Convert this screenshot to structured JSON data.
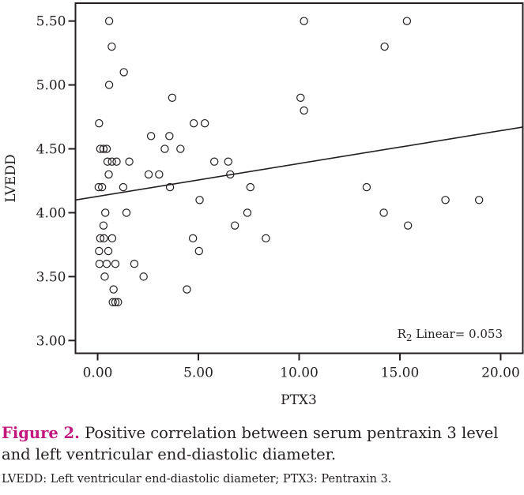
{
  "chart_data": {
    "type": "scatter",
    "title": "",
    "xlabel": "PTX3",
    "ylabel": "LVEDD",
    "xlim": [
      -1.1,
      21.1
    ],
    "ylim": [
      2.9,
      5.64
    ],
    "xticks": [
      0,
      5,
      10,
      15,
      20
    ],
    "xtick_labels": [
      "0.00",
      "5.00",
      "10.00",
      "15.00",
      "20.00"
    ],
    "yticks": [
      3.0,
      3.5,
      4.0,
      4.5,
      5.0,
      5.5
    ],
    "ytick_labels": [
      "3.00",
      "3.50",
      "4.00",
      "4.50",
      "5.00",
      "5.50"
    ],
    "grid": false,
    "legend": null,
    "points": [
      {
        "x": 0.57,
        "y": 5.5
      },
      {
        "x": 0.7,
        "y": 5.3
      },
      {
        "x": 1.3,
        "y": 5.1
      },
      {
        "x": 0.57,
        "y": 5.0
      },
      {
        "x": 0.07,
        "y": 4.7
      },
      {
        "x": 0.13,
        "y": 4.5
      },
      {
        "x": 0.29,
        "y": 4.5
      },
      {
        "x": 0.45,
        "y": 4.5
      },
      {
        "x": 0.49,
        "y": 4.4
      },
      {
        "x": 0.71,
        "y": 4.4
      },
      {
        "x": 0.94,
        "y": 4.4
      },
      {
        "x": 1.57,
        "y": 4.4
      },
      {
        "x": 0.55,
        "y": 4.3
      },
      {
        "x": 0.05,
        "y": 4.2
      },
      {
        "x": 0.22,
        "y": 4.2
      },
      {
        "x": 1.27,
        "y": 4.2
      },
      {
        "x": 0.38,
        "y": 4.0
      },
      {
        "x": 1.43,
        "y": 4.0
      },
      {
        "x": 0.29,
        "y": 3.9
      },
      {
        "x": 0.13,
        "y": 3.8
      },
      {
        "x": 0.31,
        "y": 3.8
      },
      {
        "x": 0.72,
        "y": 3.8
      },
      {
        "x": 0.07,
        "y": 3.7
      },
      {
        "x": 0.53,
        "y": 3.7
      },
      {
        "x": 0.09,
        "y": 3.6
      },
      {
        "x": 0.45,
        "y": 3.6
      },
      {
        "x": 0.88,
        "y": 3.6
      },
      {
        "x": 1.82,
        "y": 3.6
      },
      {
        "x": 0.35,
        "y": 3.5
      },
      {
        "x": 2.28,
        "y": 3.5
      },
      {
        "x": 0.79,
        "y": 3.4
      },
      {
        "x": 0.75,
        "y": 3.3
      },
      {
        "x": 0.88,
        "y": 3.3
      },
      {
        "x": 1.01,
        "y": 3.3
      },
      {
        "x": 3.7,
        "y": 4.9
      },
      {
        "x": 4.77,
        "y": 4.7
      },
      {
        "x": 5.32,
        "y": 4.7
      },
      {
        "x": 2.65,
        "y": 4.6
      },
      {
        "x": 3.56,
        "y": 4.6
      },
      {
        "x": 3.33,
        "y": 4.5
      },
      {
        "x": 4.11,
        "y": 4.5
      },
      {
        "x": 5.79,
        "y": 4.4
      },
      {
        "x": 6.48,
        "y": 4.4
      },
      {
        "x": 2.53,
        "y": 4.3
      },
      {
        "x": 3.05,
        "y": 4.3
      },
      {
        "x": 6.58,
        "y": 4.3
      },
      {
        "x": 3.59,
        "y": 4.2
      },
      {
        "x": 7.58,
        "y": 4.2
      },
      {
        "x": 5.06,
        "y": 4.1
      },
      {
        "x": 7.43,
        "y": 4.0
      },
      {
        "x": 6.81,
        "y": 3.9
      },
      {
        "x": 4.73,
        "y": 3.8
      },
      {
        "x": 8.35,
        "y": 3.8
      },
      {
        "x": 5.03,
        "y": 3.7
      },
      {
        "x": 4.43,
        "y": 3.4
      },
      {
        "x": 10.24,
        "y": 5.5
      },
      {
        "x": 15.35,
        "y": 5.5
      },
      {
        "x": 14.24,
        "y": 5.3
      },
      {
        "x": 10.07,
        "y": 4.9
      },
      {
        "x": 10.24,
        "y": 4.8
      },
      {
        "x": 13.35,
        "y": 4.2
      },
      {
        "x": 17.26,
        "y": 4.1
      },
      {
        "x": 18.93,
        "y": 4.1
      },
      {
        "x": 14.2,
        "y": 4.0
      },
      {
        "x": 15.4,
        "y": 3.9
      }
    ],
    "fit_line": {
      "type": "linear",
      "intercept": 4.128,
      "slope": 0.0257
    },
    "annotations": [
      {
        "text_main": "R",
        "text_sub": "2",
        "text_rest": " Linear= 0.053",
        "placement": "bottom-right"
      }
    ]
  },
  "caption": {
    "figure_label": "Figure 2.",
    "text": " Positive correlation between serum pentraxin 3 level and left ventricular end-diastolic diameter."
  },
  "footnote": "LVEDD: Left ventricular end-diastolic diameter; PTX3: Pentraxin 3."
}
